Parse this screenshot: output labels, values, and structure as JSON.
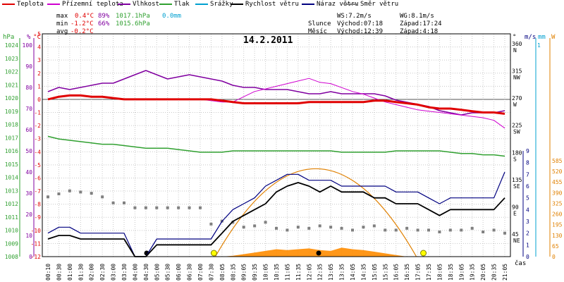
{
  "legend": [
    {
      "label": "Teplota",
      "color": "#e00000"
    },
    {
      "label": "Přízemní teplota",
      "color": "#d000d0"
    },
    {
      "label": "Vlhkost",
      "color": "#8000a0"
    },
    {
      "label": "Tlak",
      "color": "#30a030"
    },
    {
      "label": "Srážky",
      "color": "#00a0d0"
    },
    {
      "label": "Rychlost větru",
      "color": "#000000"
    },
    {
      "label": "Náraz větru",
      "color": "#000080"
    },
    {
      "label": "Směr větru",
      "color": "#808080"
    }
  ],
  "stats": {
    "max_label": "max",
    "max_temp": "0.4°C",
    "max_hum": "89%",
    "max_press": "1017.1hPa",
    "max_rain": "0.0mm",
    "min_label": "min",
    "min_temp": "-1.2°C",
    "min_hum": "66%",
    "min_press": "1015.6hPa",
    "avg_label": "avg",
    "avg_temp": "-0.2°C",
    "ws": "WS:7.2m/s",
    "wg": "WG:8.1m/s",
    "sun_label": "Slunce",
    "sun_rise": "Východ:07:18",
    "sun_set": "Západ:17:24",
    "moon_label": "Měsíc",
    "moon_rise": "Východ:12:39",
    "moon_set": "Západ:4:18"
  },
  "chart_data": {
    "type": "line",
    "title": "14.2.2011",
    "xlabel": "čas",
    "x_ticks": [
      "00:10",
      "00:30",
      "01:00",
      "01:30",
      "02:00",
      "02:30",
      "03:00",
      "03:30",
      "04:00",
      "04:30",
      "05:00",
      "05:30",
      "06:00",
      "06:30",
      "07:00",
      "07:30",
      "08:05",
      "08:35",
      "09:05",
      "09:35",
      "10:05",
      "10:35",
      "11:05",
      "11:35",
      "12:05",
      "12:35",
      "13:05",
      "13:35",
      "14:05",
      "14:35",
      "15:05",
      "15:35",
      "16:05",
      "16:35",
      "17:05",
      "17:35",
      "18:05",
      "18:35",
      "19:05",
      "19:35",
      "20:05",
      "20:35",
      "21:05"
    ],
    "axes": {
      "hPa": {
        "label": "hPa",
        "ticks": [
          1024,
          1023,
          1022,
          1021,
          1020,
          1019,
          1018,
          1017,
          1016,
          1015,
          1014,
          1013,
          1012,
          1011,
          1010,
          1009,
          1008
        ],
        "color": "#30a030"
      },
      "percent": {
        "label": "%",
        "ticks": [
          100,
          90,
          80,
          70,
          60,
          50,
          40,
          30,
          20,
          10,
          0
        ],
        "color": "#8000a0"
      },
      "celsius": {
        "label": "°C",
        "ticks": [
          5,
          4,
          3,
          2,
          1,
          0,
          -1,
          -2,
          -3,
          -4,
          -5,
          -6,
          -7,
          -8,
          -9,
          -10,
          -11,
          -12
        ],
        "color": "#e00000"
      },
      "direction": {
        "label": "°",
        "ticks": [
          "360 N",
          "315 NW",
          "270 W",
          "225 SW",
          "180 S",
          "135 SE",
          "90 E",
          "45 NE"
        ],
        "color": "#000000"
      },
      "wind": {
        "label": "m/s",
        "ticks": [
          9,
          8,
          7,
          6,
          5,
          4,
          3,
          2,
          1,
          0
        ],
        "color": "#000080"
      },
      "rain": {
        "label": "mm",
        "ticks": [
          1
        ],
        "color": "#00a0d0"
      },
      "solar": {
        "label": "W",
        "ticks": [
          585,
          520,
          455,
          390,
          325,
          260,
          195,
          130,
          65,
          0
        ],
        "color": "#e08000"
      }
    },
    "series": [
      {
        "name": "Teplota",
        "unit": "°C",
        "values": [
          0,
          0.2,
          0.3,
          0.3,
          0.2,
          0.2,
          0.1,
          0,
          0,
          0,
          0,
          0,
          0,
          0,
          0,
          0,
          -0.1,
          -0.2,
          -0.3,
          -0.3,
          -0.3,
          -0.3,
          -0.3,
          -0.3,
          -0.2,
          -0.2,
          -0.2,
          -0.2,
          -0.2,
          -0.2,
          -0.1,
          -0.1,
          -0.2,
          -0.3,
          -0.4,
          -0.6,
          -0.7,
          -0.7,
          -0.8,
          -0.9,
          -1.0,
          -1.0,
          -1.1
        ]
      },
      {
        "name": "Přízemní teplota",
        "unit": "°C",
        "values": [
          0,
          0.2,
          0.3,
          0.3,
          0.2,
          0.2,
          0.1,
          0,
          0,
          0,
          0,
          0,
          0,
          0,
          0,
          -0.1,
          -0.2,
          -0.2,
          0.2,
          0.6,
          0.8,
          1.0,
          1.2,
          1.4,
          1.6,
          1.3,
          1.2,
          0.9,
          0.6,
          0.4,
          0.1,
          -0.2,
          -0.4,
          -0.6,
          -0.8,
          -0.9,
          -1.0,
          -1.1,
          -1.2,
          -1.3,
          -1.4,
          -1.6,
          -2.2
        ]
      },
      {
        "name": "Vlhkost",
        "unit": "%",
        "values": [
          78,
          80,
          79,
          80,
          81,
          82,
          82,
          84,
          86,
          88,
          86,
          84,
          85,
          86,
          85,
          84,
          83,
          81,
          80,
          80,
          79,
          79,
          79,
          78,
          77,
          77,
          78,
          77,
          77,
          77,
          77,
          76,
          74,
          73,
          72,
          71,
          69,
          68,
          67,
          68,
          68,
          68,
          69
        ]
      },
      {
        "name": "Tlak",
        "unit": "hPa",
        "values": [
          1017.1,
          1016.9,
          1016.8,
          1016.7,
          1016.6,
          1016.5,
          1016.5,
          1016.4,
          1016.3,
          1016.2,
          1016.2,
          1016.2,
          1016.1,
          1016.0,
          1015.9,
          1015.9,
          1015.9,
          1016.0,
          1016.0,
          1016.0,
          1016.0,
          1016.0,
          1016.0,
          1016.0,
          1016.0,
          1016.0,
          1016.0,
          1015.9,
          1015.9,
          1015.9,
          1015.9,
          1015.9,
          1016.0,
          1016.0,
          1016.0,
          1016.0,
          1016.0,
          1015.9,
          1015.8,
          1015.8,
          1015.7,
          1015.7,
          1015.6
        ]
      },
      {
        "name": "Rychlost větru",
        "unit": "m/s",
        "values": [
          1.5,
          1.8,
          1.8,
          1.5,
          1.5,
          1.5,
          1.5,
          1.5,
          0,
          0,
          1,
          1,
          1,
          1,
          1,
          1,
          2,
          3,
          3.5,
          4,
          4.5,
          5.5,
          6,
          6.3,
          6,
          5.5,
          6,
          5.5,
          5.5,
          5.5,
          5,
          5,
          4.5,
          4.5,
          4.5,
          4,
          3.5,
          4,
          4,
          4,
          4,
          4,
          5
        ]
      },
      {
        "name": "Náraz větru",
        "unit": "m/s",
        "values": [
          2,
          2.5,
          2.5,
          2,
          2,
          2,
          2,
          2,
          0,
          0,
          1.5,
          1.5,
          1.5,
          1.5,
          1.5,
          1.5,
          3,
          4,
          4.5,
          5,
          6,
          6.5,
          7,
          7,
          6.5,
          6.5,
          6.5,
          6,
          6,
          6,
          6,
          6,
          5.5,
          5.5,
          5.5,
          5,
          4.5,
          5,
          5,
          5,
          5,
          5,
          7.2
        ]
      },
      {
        "name": "Směr větru",
        "unit": "°",
        "values": [
          110,
          115,
          120,
          118,
          116,
          110,
          100,
          100,
          92,
          92,
          92,
          92,
          92,
          92,
          92,
          65,
          70,
          68,
          60,
          62,
          68,
          58,
          55,
          60,
          58,
          62,
          60,
          58,
          55,
          60,
          62,
          55,
          55,
          58,
          55,
          55,
          52,
          55,
          55,
          58,
          52,
          55,
          50
        ]
      },
      {
        "name": "Srážky",
        "unit": "mm",
        "values": [
          0,
          0,
          0,
          0,
          0,
          0,
          0,
          0,
          0,
          0,
          0,
          0,
          0,
          0,
          0,
          0,
          0,
          0,
          0,
          0,
          0,
          0,
          0,
          0,
          0,
          0,
          0,
          0,
          0,
          0,
          0,
          0,
          0,
          0,
          0,
          0,
          0,
          0,
          0,
          0,
          0,
          0,
          0
        ]
      },
      {
        "name": "Solar",
        "unit": "W",
        "values": [
          0,
          0,
          0,
          0,
          0,
          0,
          0,
          0,
          0,
          0,
          0,
          0,
          0,
          0,
          0,
          0,
          0,
          5,
          15,
          25,
          35,
          45,
          40,
          45,
          50,
          40,
          35,
          55,
          45,
          40,
          30,
          20,
          10,
          0,
          0,
          0,
          0,
          0,
          0,
          0,
          0,
          0,
          0
        ]
      }
    ],
    "grid": true
  }
}
